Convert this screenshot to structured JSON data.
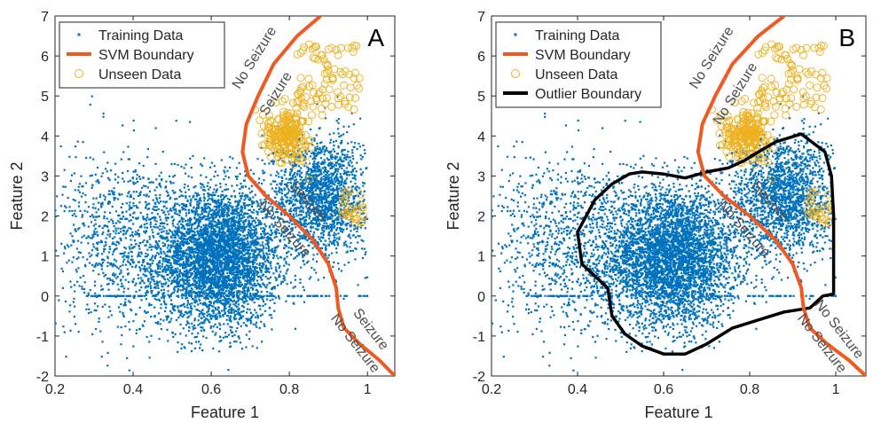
{
  "figure": {
    "panels": [
      "A",
      "B"
    ]
  },
  "chart_data": [
    {
      "type": "scatter",
      "panel_label": "A",
      "xlabel": "Feature 1",
      "ylabel": "Feature 2",
      "xlim": [
        0.2,
        1.07
      ],
      "ylim": [
        -2,
        7
      ],
      "xticks": [
        "0.2",
        "0.4",
        "0.6",
        "0.8",
        "1"
      ],
      "yticks": [
        "-2",
        "-1",
        "0",
        "1",
        "2",
        "3",
        "4",
        "5",
        "6",
        "7"
      ],
      "grid": false,
      "legend_position": "top-left",
      "legend": [
        {
          "label": "Training Data",
          "marker": "point",
          "color": "#0072BD"
        },
        {
          "label": "SVM Boundary",
          "marker": "line",
          "color": "#F05A22"
        },
        {
          "label": "Unseen Data",
          "marker": "circle",
          "color": "#EDB120"
        }
      ],
      "series": [
        {
          "name": "Training Data",
          "color": "#0072BD",
          "description_points": "dense cluster",
          "cluster_centers": [
            [
              0.62,
              1.0
            ],
            [
              0.88,
              2.6
            ],
            [
              0.93,
              0.0
            ]
          ]
        },
        {
          "name": "Unseen Data",
          "color": "#EDB120",
          "cluster_centers": [
            [
              0.8,
              4.1
            ],
            [
              0.9,
              5.6
            ],
            [
              0.97,
              2.2
            ]
          ]
        },
        {
          "name": "SVM Boundary",
          "color": "#F05A22",
          "x": [
            0.88,
            0.82,
            0.76,
            0.72,
            0.69,
            0.68,
            0.695,
            0.74,
            0.8,
            0.86,
            0.9,
            0.92,
            0.925,
            0.94,
            0.98,
            1.03,
            1.07
          ],
          "y": [
            7.0,
            6.5,
            5.8,
            5.0,
            4.3,
            3.6,
            3.0,
            2.5,
            2.0,
            1.4,
            0.8,
            0.2,
            -0.3,
            -0.8,
            -1.2,
            -1.6,
            -2.0
          ]
        }
      ],
      "annotations": [
        {
          "text": "No Seizure",
          "x": 0.72,
          "y": 5.9,
          "rotate": -58
        },
        {
          "text": "Seizure",
          "x": 0.775,
          "y": 5.0,
          "rotate": -58
        },
        {
          "text": "Seizure",
          "x": 0.84,
          "y": 2.3,
          "rotate": 48
        },
        {
          "text": "No Seizure",
          "x": 0.78,
          "y": 1.6,
          "rotate": 48
        },
        {
          "text": "Seizure",
          "x": 1.0,
          "y": -0.9,
          "rotate": 52
        },
        {
          "text": "No Seizure",
          "x": 0.96,
          "y": -1.25,
          "rotate": 52
        }
      ]
    },
    {
      "type": "scatter",
      "panel_label": "B",
      "xlabel": "Feature 1",
      "ylabel": "Feature 2",
      "xlim": [
        0.2,
        1.07
      ],
      "ylim": [
        -2,
        7
      ],
      "xticks": [
        "0.2",
        "0.4",
        "0.6",
        "0.8",
        "1"
      ],
      "yticks": [
        "-2",
        "-1",
        "0",
        "1",
        "2",
        "3",
        "4",
        "5",
        "6",
        "7"
      ],
      "grid": false,
      "legend_position": "top-left",
      "legend": [
        {
          "label": "Training Data",
          "marker": "point",
          "color": "#0072BD"
        },
        {
          "label": "SVM Boundary",
          "marker": "line",
          "color": "#F05A22"
        },
        {
          "label": "Unseen Data",
          "marker": "circle",
          "color": "#EDB120"
        },
        {
          "label": "Outlier Boundary",
          "marker": "line",
          "color": "#000000"
        }
      ],
      "series": [
        {
          "name": "Training Data",
          "color": "#0072BD",
          "cluster_centers": [
            [
              0.62,
              1.0
            ],
            [
              0.88,
              2.6
            ],
            [
              0.93,
              0.0
            ]
          ]
        },
        {
          "name": "Unseen Data",
          "color": "#EDB120",
          "cluster_centers": [
            [
              0.8,
              4.1
            ],
            [
              0.9,
              5.6
            ],
            [
              0.97,
              2.2
            ]
          ]
        },
        {
          "name": "SVM Boundary",
          "color": "#F05A22",
          "x": [
            0.88,
            0.82,
            0.76,
            0.72,
            0.69,
            0.68,
            0.695,
            0.74,
            0.8,
            0.86,
            0.9,
            0.92,
            0.925,
            0.94,
            0.98,
            1.03,
            1.07
          ],
          "y": [
            7.0,
            6.5,
            5.8,
            5.0,
            4.3,
            3.6,
            3.0,
            2.5,
            2.0,
            1.4,
            0.8,
            0.2,
            -0.3,
            -0.8,
            -1.2,
            -1.6,
            -2.0
          ]
        },
        {
          "name": "Outlier Boundary",
          "color": "#000000",
          "x": [
            0.42,
            0.44,
            0.48,
            0.52,
            0.55,
            0.6,
            0.65,
            0.7,
            0.75,
            0.79,
            0.82,
            0.86,
            0.92,
            0.975,
            0.99,
            0.995,
            0.995,
            0.97,
            0.94,
            0.88,
            0.82,
            0.76,
            0.7,
            0.65,
            0.6,
            0.55,
            0.51,
            0.48,
            0.47,
            0.44,
            0.41,
            0.4,
            0.42
          ],
          "y": [
            2.0,
            2.4,
            2.8,
            3.05,
            3.1,
            3.05,
            2.95,
            3.1,
            3.2,
            3.4,
            3.6,
            3.85,
            4.05,
            3.6,
            3.0,
            2.0,
            0.05,
            0.0,
            -0.3,
            -0.4,
            -0.6,
            -0.8,
            -1.2,
            -1.45,
            -1.45,
            -1.25,
            -0.95,
            -0.5,
            0.2,
            0.5,
            0.8,
            1.6,
            2.0
          ]
        }
      ],
      "annotations": [
        {
          "text": "No Seizure",
          "x": 0.72,
          "y": 5.9,
          "rotate": -58
        },
        {
          "text": "No Seizure",
          "x": 0.775,
          "y": 5.0,
          "rotate": -58
        },
        {
          "text": "Seizure",
          "x": 0.84,
          "y": 2.3,
          "rotate": 48
        },
        {
          "text": "No Seizure",
          "x": 0.78,
          "y": 1.6,
          "rotate": 48
        },
        {
          "text": "No Seizure",
          "x": 1.0,
          "y": -0.9,
          "rotate": 52
        },
        {
          "text": "No Seizure",
          "x": 0.96,
          "y": -1.25,
          "rotate": 52
        }
      ]
    }
  ]
}
